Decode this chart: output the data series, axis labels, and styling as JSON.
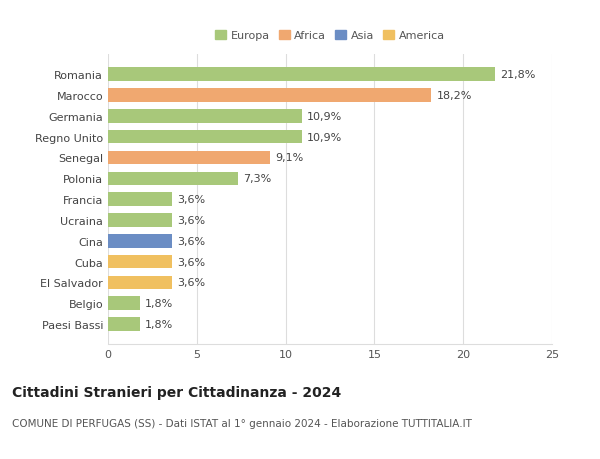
{
  "categories": [
    "Paesi Bassi",
    "Belgio",
    "El Salvador",
    "Cuba",
    "Cina",
    "Ucraina",
    "Francia",
    "Polonia",
    "Senegal",
    "Regno Unito",
    "Germania",
    "Marocco",
    "Romania"
  ],
  "values": [
    1.8,
    1.8,
    3.6,
    3.6,
    3.6,
    3.6,
    3.6,
    7.3,
    9.1,
    10.9,
    10.9,
    18.2,
    21.8
  ],
  "labels": [
    "1,8%",
    "1,8%",
    "3,6%",
    "3,6%",
    "3,6%",
    "3,6%",
    "3,6%",
    "7,3%",
    "9,1%",
    "10,9%",
    "10,9%",
    "18,2%",
    "21,8%"
  ],
  "colors": [
    "#a8c87a",
    "#a8c87a",
    "#f0c060",
    "#f0c060",
    "#6b8dc4",
    "#a8c87a",
    "#a8c87a",
    "#a8c87a",
    "#f0a870",
    "#a8c87a",
    "#a8c87a",
    "#f0a870",
    "#a8c87a"
  ],
  "legend": [
    {
      "label": "Europa",
      "color": "#a8c87a"
    },
    {
      "label": "Africa",
      "color": "#f0a870"
    },
    {
      "label": "Asia",
      "color": "#6b8dc4"
    },
    {
      "label": "America",
      "color": "#f0c060"
    }
  ],
  "xlim": [
    0,
    25
  ],
  "xticks": [
    0,
    5,
    10,
    15,
    20,
    25
  ],
  "title": "Cittadini Stranieri per Cittadinanza - 2024",
  "subtitle": "COMUNE DI PERFUGAS (SS) - Dati ISTAT al 1° gennaio 2024 - Elaborazione TUTTITALIA.IT",
  "background_color": "#ffffff",
  "bar_height": 0.65,
  "grid_color": "#dddddd",
  "label_fontsize": 8,
  "tick_fontsize": 8,
  "title_fontsize": 10,
  "subtitle_fontsize": 7.5
}
